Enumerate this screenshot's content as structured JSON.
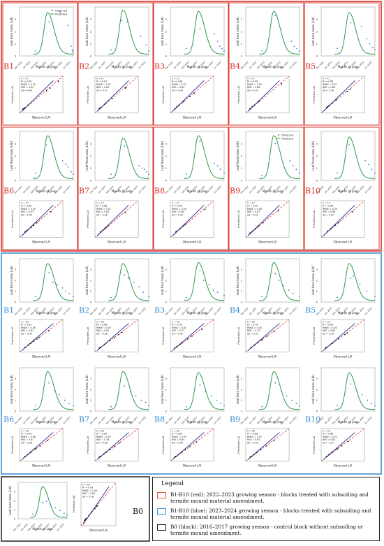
{
  "legend": {
    "title": "Legend",
    "items": [
      {
        "color": "#e15a3c",
        "text": "B1-B10 (red): 2022–2023 growing season - blocks treated with subsoiling and termite mound material amendment."
      },
      {
        "color": "#3d8fcf",
        "text": "B1-B10 (blue): 2023–2024 growing season - blocks treated with subsoiling and termite mound material amendment."
      },
      {
        "color": "#111111",
        "text": "B0 (black): 2016–2017 growing season - control block without subsoiling or termite mound amendment."
      }
    ]
  },
  "colors": {
    "red_frame": "#d9342b",
    "blue_frame": "#3b8fd4",
    "black_frame": "#111111",
    "observed": "#2f7fd0",
    "predicted": "#2a9a4a",
    "fit_line": "#1a2a9a",
    "one_to_one": "#e03030"
  },
  "common": {
    "ts_ylabel": "Leaf Area Index (LAI)",
    "ts_xlabel": "Month of year",
    "sc_xlabel": "Observed LAI",
    "sc_ylabel": "Predicted LAI",
    "legend_observed": "Observed",
    "legend_predicted": "Predicted",
    "months": [
      "Dec 2022",
      "Jan 2023",
      "Feb 2023",
      "Mar 2023",
      "Apr 2023",
      "May 2023",
      "Jun 2023"
    ]
  },
  "chart_data": [
    {
      "type": "line",
      "panel": "B1",
      "group": "red",
      "label": "B1",
      "stats": [
        "n = 17",
        "R² = 0.89",
        "RMSE = 0.30",
        "NSE = 0.85",
        "Sd = 0.40"
      ],
      "observed": [
        [
          0.3,
          0.4
        ],
        [
          0.55,
          2.8
        ],
        [
          0.75,
          3.6
        ],
        [
          0.9,
          2.5
        ],
        [
          0.96,
          0.8
        ],
        [
          0.98,
          0.5
        ],
        [
          0.99,
          0.4
        ],
        [
          1.0,
          0.3
        ]
      ],
      "peak": 3.4
    },
    {
      "type": "line",
      "panel": "B2",
      "group": "red",
      "label": "B2",
      "stats": [
        "n = 17",
        "R² = 0.87",
        "RMSE = 0.32",
        "NSE = 0.83",
        "Sd = 0.37"
      ],
      "observed": [
        [
          0.3,
          0.5
        ],
        [
          0.5,
          2.9
        ],
        [
          0.6,
          2.8
        ],
        [
          0.85,
          1.6
        ],
        [
          0.95,
          0.9
        ],
        [
          1.0,
          0.4
        ]
      ],
      "peak": 3.6
    },
    {
      "type": "line",
      "panel": "B3",
      "group": "red",
      "label": "B3",
      "stats": [
        "n = 17",
        "R² = 0.88",
        "RMSE = 0.33",
        "NSE = 0.85",
        "Sd = 0.36"
      ],
      "observed": [
        [
          0.3,
          0.6
        ],
        [
          0.55,
          2.2
        ],
        [
          0.82,
          1.8
        ],
        [
          0.88,
          1.2
        ],
        [
          0.92,
          0.8
        ],
        [
          0.96,
          0.6
        ],
        [
          1.0,
          0.4
        ]
      ],
      "peak": 3.5
    },
    {
      "type": "line",
      "panel": "B4",
      "group": "red",
      "label": "B4",
      "stats": [
        "n = 17",
        "R² = 0.90",
        "RMSE = 0.29",
        "NSE = 0.88",
        "Sd = 0.33"
      ],
      "observed": [
        [
          0.3,
          0.4
        ],
        [
          0.55,
          3.3
        ],
        [
          0.85,
          1.2
        ],
        [
          0.9,
          0.8
        ],
        [
          0.95,
          0.6
        ],
        [
          1.0,
          0.4
        ]
      ],
      "peak": 3.5
    },
    {
      "type": "line",
      "panel": "B5",
      "group": "red",
      "label": "B5",
      "stats": [
        "n = 17",
        "R² = 0.89",
        "RMSE = 0.31",
        "NSE = 0.86",
        "Sd = 0.34"
      ],
      "observed": [
        [
          0.3,
          0.6
        ],
        [
          0.55,
          2.7
        ],
        [
          0.75,
          2.4
        ],
        [
          0.85,
          1.4
        ],
        [
          0.9,
          1.0
        ],
        [
          0.96,
          0.7
        ],
        [
          1.0,
          0.5
        ]
      ],
      "peak": 3.4
    },
    {
      "type": "line",
      "panel": "B6",
      "group": "red",
      "label": "B6",
      "stats": [
        "n = 17",
        "R² = 0.89",
        "RMSE = 0.30",
        "NSE = 0.85",
        "Sd = 0.35"
      ],
      "observed": [
        [
          0.3,
          0.6
        ],
        [
          0.5,
          2.9
        ],
        [
          0.8,
          1.6
        ],
        [
          0.86,
          1.3
        ],
        [
          0.9,
          1.1
        ],
        [
          0.96,
          0.7
        ],
        [
          1.0,
          0.5
        ]
      ],
      "peak": 3.5
    },
    {
      "type": "line",
      "panel": "B7",
      "group": "red",
      "label": "B7",
      "stats": [
        "n = 17",
        "R² = 0.88",
        "RMSE = 0.31",
        "NSE = 0.84",
        "Sd = 0.36"
      ],
      "observed": [
        [
          0.3,
          0.5
        ],
        [
          0.55,
          2.8
        ],
        [
          0.82,
          1.2
        ],
        [
          0.88,
          1.0
        ],
        [
          0.92,
          0.9
        ],
        [
          0.96,
          0.7
        ],
        [
          1.0,
          0.5
        ]
      ],
      "peak": 3.3
    },
    {
      "type": "line",
      "panel": "B8",
      "group": "red",
      "label": "B8",
      "stats": [
        "n = 17",
        "R² = 0.92",
        "RMSE = 0.26",
        "NSE = 0.90",
        "Sd = 0.30"
      ],
      "observed": [
        [
          0.3,
          0.5
        ],
        [
          0.55,
          3.2
        ],
        [
          0.82,
          1.4
        ],
        [
          0.88,
          1.2
        ],
        [
          0.93,
          0.9
        ],
        [
          1.0,
          0.6
        ]
      ],
      "peak": 3.5
    },
    {
      "type": "line",
      "panel": "B9",
      "group": "red",
      "label": "B9",
      "stats": [
        "n = 17",
        "R² = 0.90",
        "RMSE = 0.28",
        "NSE = 0.87",
        "Sd = 0.31"
      ],
      "observed": [
        [
          0.3,
          0.4
        ],
        [
          0.55,
          3.0
        ],
        [
          0.82,
          1.6
        ],
        [
          0.88,
          1.2
        ],
        [
          0.94,
          0.9
        ],
        [
          1.0,
          0.6
        ]
      ],
      "peak": 3.5
    },
    {
      "type": "line",
      "panel": "B10",
      "group": "red",
      "label": "B10",
      "stats": [
        "n = 17",
        "R² = 0.89",
        "RMSE = 0.30",
        "NSE = 0.86",
        "Sd = 0.32"
      ],
      "observed": [
        [
          0.3,
          0.6
        ],
        [
          0.52,
          2.9
        ],
        [
          0.82,
          1.6
        ],
        [
          0.88,
          1.3
        ],
        [
          0.94,
          0.9
        ],
        [
          1.0,
          0.6
        ]
      ],
      "peak": 3.4
    },
    {
      "type": "line",
      "panel": "B1",
      "group": "blue",
      "label": "B1",
      "stats": [
        "n = 20",
        "R² = 0.85",
        "RMSE = 0.36",
        "NSE = 0.82",
        "Sd = 0.40"
      ],
      "observed": [
        [
          0.3,
          0.5
        ],
        [
          0.55,
          2.7
        ],
        [
          0.62,
          1.8
        ],
        [
          0.7,
          1.6
        ],
        [
          0.8,
          1.3
        ],
        [
          0.86,
          1.0
        ],
        [
          0.92,
          0.8
        ],
        [
          1.0,
          0.5
        ]
      ],
      "peak": 3.4
    },
    {
      "type": "line",
      "panel": "B2",
      "group": "blue",
      "label": "B2",
      "stats": [
        "n = 20",
        "R² = 0.86",
        "RMSE = 0.33",
        "NSE = 0.83",
        "Sd = 0.38"
      ],
      "observed": [
        [
          0.3,
          0.4
        ],
        [
          0.55,
          2.5
        ],
        [
          0.62,
          2.2
        ],
        [
          0.72,
          1.8
        ],
        [
          0.82,
          1.4
        ],
        [
          0.9,
          0.9
        ],
        [
          1.0,
          0.5
        ]
      ],
      "peak": 3.4
    },
    {
      "type": "line",
      "panel": "B3",
      "group": "blue",
      "label": "B3",
      "stats": [
        "n = 20",
        "R² = 0.79",
        "RMSE = 0.41",
        "NSE = 0.77",
        "Sd = 0.45"
      ],
      "observed": [
        [
          0.3,
          0.4
        ],
        [
          0.55,
          2.9
        ],
        [
          0.62,
          2.0
        ],
        [
          0.72,
          1.6
        ],
        [
          0.8,
          1.1
        ],
        [
          0.88,
          0.9
        ],
        [
          1.0,
          0.6
        ]
      ],
      "peak": 3.5
    },
    {
      "type": "line",
      "panel": "B4",
      "group": "blue",
      "label": "B4",
      "stats": [
        "n = 20",
        "R² = 0.76",
        "RMSE = 0.34",
        "NSE = 0.73",
        "Sd = 0.37"
      ],
      "observed": [
        [
          0.3,
          0.5
        ],
        [
          0.55,
          2.6
        ],
        [
          0.62,
          2.0
        ],
        [
          0.7,
          1.5
        ],
        [
          0.8,
          1.1
        ],
        [
          0.88,
          0.8
        ],
        [
          1.0,
          0.5
        ]
      ],
      "peak": 3.5
    },
    {
      "type": "line",
      "panel": "B5",
      "group": "blue",
      "label": "B5",
      "stats": [
        "n = 20",
        "R² = 0.83",
        "RMSE = 0.35",
        "NSE = 0.80",
        "Sd = 0.39"
      ],
      "observed": [
        [
          0.3,
          0.4
        ],
        [
          0.55,
          2.2
        ],
        [
          0.6,
          2.4
        ],
        [
          0.72,
          1.6
        ],
        [
          0.85,
          1.0
        ],
        [
          1.0,
          0.5
        ]
      ],
      "peak": 3.4
    },
    {
      "type": "line",
      "panel": "B6",
      "group": "blue",
      "label": "B6",
      "stats": [
        "n = 20",
        "R² = 0.84",
        "RMSE = 0.36",
        "NSE = 0.81",
        "Sd = 0.38"
      ],
      "observed": [
        [
          0.3,
          0.5
        ],
        [
          0.55,
          2.6
        ],
        [
          0.65,
          1.9
        ],
        [
          0.74,
          1.5
        ],
        [
          0.84,
          1.0
        ],
        [
          0.92,
          0.7
        ],
        [
          1.0,
          0.5
        ]
      ],
      "peak": 3.5
    },
    {
      "type": "line",
      "panel": "B7",
      "group": "blue",
      "label": "B7",
      "stats": [
        "n = 20",
        "R² = 0.80",
        "RMSE = 0.35",
        "NSE = 0.78",
        "Sd = 0.38"
      ],
      "observed": [
        [
          0.3,
          0.4
        ],
        [
          0.55,
          2.3
        ],
        [
          0.66,
          1.8
        ],
        [
          0.76,
          1.4
        ],
        [
          0.86,
          1.0
        ],
        [
          0.94,
          0.8
        ],
        [
          1.0,
          0.5
        ]
      ],
      "peak": 3.5
    },
    {
      "type": "line",
      "panel": "B8",
      "group": "blue",
      "label": "B8",
      "stats": [
        "n = 20",
        "R² = 0.87",
        "RMSE = 0.33",
        "NSE = 0.84",
        "Sd = 0.36"
      ],
      "observed": [
        [
          0.3,
          0.4
        ],
        [
          0.55,
          2.4
        ],
        [
          0.66,
          1.8
        ],
        [
          0.76,
          1.4
        ],
        [
          0.86,
          1.0
        ],
        [
          0.94,
          0.7
        ],
        [
          1.0,
          0.5
        ]
      ],
      "peak": 3.4
    },
    {
      "type": "line",
      "panel": "B9",
      "group": "blue",
      "label": "B9",
      "stats": [
        "n = 20",
        "R² = 0.88",
        "RMSE = 0.32",
        "NSE = 0.85",
        "Sd = 0.35"
      ],
      "observed": [
        [
          0.3,
          0.4
        ],
        [
          0.55,
          2.6
        ],
        [
          0.66,
          1.9
        ],
        [
          0.76,
          1.4
        ],
        [
          0.86,
          1.0
        ],
        [
          0.94,
          0.7
        ],
        [
          1.0,
          0.5
        ]
      ],
      "peak": 3.5
    },
    {
      "type": "line",
      "panel": "B10",
      "group": "blue",
      "label": "B10",
      "stats": [
        "n = 20",
        "R² = 0.86",
        "RMSE = 0.32",
        "NSE = 0.83",
        "Sd = 0.37"
      ],
      "observed": [
        [
          0.3,
          0.5
        ],
        [
          0.55,
          2.5
        ],
        [
          0.66,
          1.9
        ],
        [
          0.76,
          1.5
        ],
        [
          0.86,
          1.0
        ],
        [
          0.94,
          0.7
        ],
        [
          1.0,
          0.5
        ]
      ],
      "peak": 3.4
    },
    {
      "type": "line",
      "panel": "B0",
      "group": "black",
      "label": "B0",
      "stats": [
        "n = 20",
        "R² = 0.83",
        "RMSE = 0.36",
        "NSE = 0.82",
        "Sd = 0.78"
      ],
      "observed": [
        [
          0.3,
          0.5
        ],
        [
          0.5,
          1.8
        ],
        [
          0.58,
          1.9
        ],
        [
          0.66,
          1.6
        ],
        [
          0.76,
          1.2
        ],
        [
          0.86,
          0.9
        ],
        [
          0.94,
          0.6
        ],
        [
          1.0,
          0.4
        ]
      ],
      "peak": 3.4
    }
  ]
}
